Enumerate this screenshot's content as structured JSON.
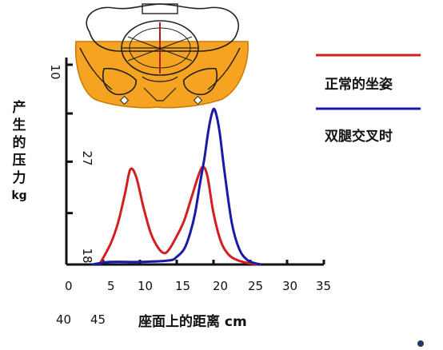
{
  "chart_data": {
    "type": "line",
    "ylabel_chars": [
      "产",
      "生",
      "的",
      "压",
      "力",
      "kg"
    ],
    "xlabel": "座面上的距离  cm",
    "x_tick_labels": [
      "0",
      "5",
      "10",
      "15",
      "20",
      "25",
      "30",
      "35"
    ],
    "x_tick_values": [
      0,
      5,
      10,
      15,
      20,
      25,
      30,
      35
    ],
    "x_extra_labels": [
      "40",
      "45"
    ],
    "y_rotated_labels": [
      "10",
      "27",
      "18"
    ],
    "xlim": [
      0,
      35
    ],
    "ylim": [
      0,
      30
    ],
    "legend": {
      "placement": "right"
    },
    "series": [
      {
        "name": "正常的坐姿",
        "color": "#d21f1f",
        "x": [
          4.5,
          6,
          7,
          8,
          8.7,
          9.5,
          10.5,
          11.5,
          12.5,
          13.3,
          14,
          15,
          16,
          17,
          18,
          18.6,
          19.2,
          20,
          21,
          22,
          23,
          24,
          25,
          26
        ],
        "y": [
          0,
          4,
          8,
          14,
          18.5,
          17,
          11,
          6,
          3.2,
          2.2,
          3,
          5.5,
          8.5,
          13,
          17.5,
          19,
          17,
          10,
          4.5,
          2,
          1,
          0.5,
          0.2,
          0
        ]
      },
      {
        "name": "双腿交叉时",
        "color": "#1a1aa8",
        "x": [
          3.5,
          6,
          10,
          14,
          15,
          16,
          16.8,
          17.5,
          18.2,
          18.8,
          19.3,
          19.8,
          20.2,
          20.8,
          21.5,
          22.5,
          23.5,
          24.5,
          25.5,
          26.5
        ],
        "y": [
          0,
          0.5,
          0.5,
          0.8,
          1.5,
          3,
          6,
          10,
          16,
          21,
          26,
          29.5,
          30,
          26,
          18,
          8,
          3,
          1,
          0.3,
          0
        ]
      }
    ]
  }
}
